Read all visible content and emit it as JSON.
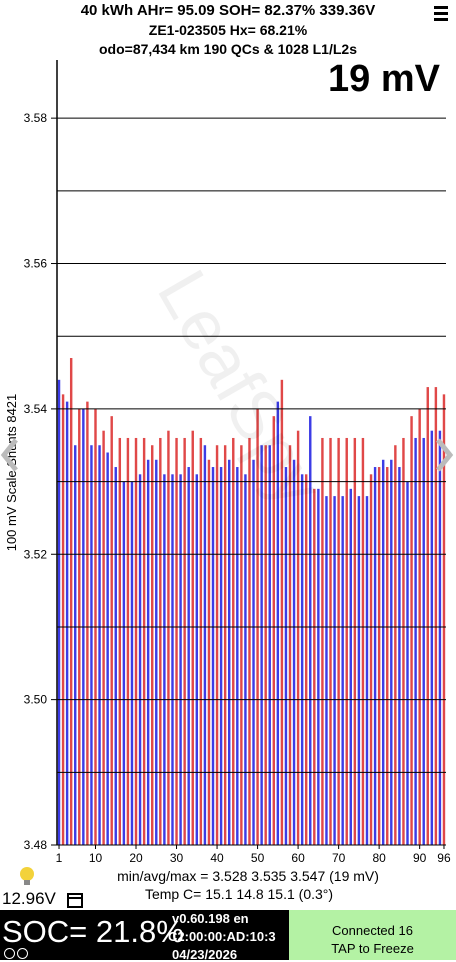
{
  "header": {
    "line1": "40 kWh  AHr= 95.09  SOH= 82.37%  339.36V",
    "line2": "ZE1-023505   Hx= 68.21%",
    "line3": "odo=87,434 km 190 QCs & 1028 L1/L2s",
    "spread": "19 mV"
  },
  "chart_data": {
    "type": "bar",
    "watermark": "LeafSpy",
    "y_label": "100 mV Scale Shunts 8421",
    "x": [
      1,
      2,
      3,
      4,
      5,
      6,
      7,
      8,
      9,
      10,
      11,
      12,
      13,
      14,
      15,
      16,
      17,
      18,
      19,
      20,
      21,
      22,
      23,
      24,
      25,
      26,
      27,
      28,
      29,
      30,
      31,
      32,
      33,
      34,
      35,
      36,
      37,
      38,
      39,
      40,
      41,
      42,
      43,
      44,
      45,
      46,
      47,
      48,
      49,
      50,
      51,
      52,
      53,
      54,
      55,
      56,
      57,
      58,
      59,
      60,
      61,
      62,
      63,
      64,
      65,
      66,
      67,
      68,
      69,
      70,
      71,
      72,
      73,
      74,
      75,
      76,
      77,
      78,
      79,
      80,
      81,
      82,
      83,
      84,
      85,
      86,
      87,
      88,
      89,
      90,
      91,
      92,
      93,
      94,
      95,
      96
    ],
    "values": [
      3.544,
      3.542,
      3.541,
      3.547,
      3.535,
      3.54,
      3.54,
      3.541,
      3.535,
      3.54,
      3.535,
      3.537,
      3.534,
      3.539,
      3.532,
      3.536,
      3.53,
      3.536,
      3.53,
      3.536,
      3.531,
      3.536,
      3.533,
      3.535,
      3.533,
      3.536,
      3.531,
      3.537,
      3.531,
      3.536,
      3.531,
      3.536,
      3.532,
      3.537,
      3.531,
      3.536,
      3.535,
      3.533,
      3.532,
      3.535,
      3.532,
      3.535,
      3.533,
      3.536,
      3.532,
      3.535,
      3.531,
      3.536,
      3.533,
      3.54,
      3.535,
      3.535,
      3.535,
      3.539,
      3.541,
      3.544,
      3.532,
      3.535,
      3.533,
      3.537,
      3.531,
      3.531,
      3.539,
      3.529,
      3.529,
      3.536,
      3.528,
      3.536,
      3.528,
      3.536,
      3.528,
      3.536,
      3.529,
      3.536,
      3.528,
      3.536,
      3.528,
      3.531,
      3.532,
      3.532,
      3.533,
      3.532,
      3.533,
      3.535,
      3.532,
      3.536,
      3.53,
      3.539,
      3.536,
      3.54,
      3.536,
      3.543,
      3.537,
      3.543,
      3.537,
      3.542
    ],
    "bar_colors": [
      "#3c3ce6",
      "#e04848"
    ],
    "xlim": [
      0.5,
      96.5
    ],
    "xticks": [
      1,
      10,
      20,
      30,
      40,
      50,
      60,
      70,
      80,
      90,
      96
    ],
    "ylim": [
      3.48,
      3.588
    ],
    "yticks": [
      3.48,
      {
        "value": 3.5,
        "label": "3.50"
      },
      3.52,
      3.54,
      3.56,
      3.58
    ],
    "minor_grid": [
      3.49,
      3.51,
      3.53,
      3.55,
      3.57
    ]
  },
  "stats": {
    "minavgmax": "min/avg/max = 3.528 3.535 3.547  (19 mV)",
    "temp": "Temp C= 15.1  14.8  15.1  (0.3°)",
    "aux_voltage": "12.96V"
  },
  "footer": {
    "soc": "SOC= 21.8%",
    "version": "v0.60.198 en",
    "mac": "C2:00:00:AD:10:3",
    "date": "04/23/2026",
    "connected": "Connected 16",
    "tap": "TAP to Freeze"
  }
}
